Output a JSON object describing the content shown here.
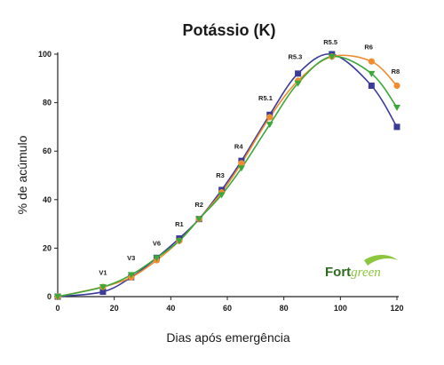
{
  "chart_data": {
    "type": "line",
    "title": "Potássio (K)",
    "xlabel": "Dias após emergência",
    "ylabel": "% de acúmulo",
    "xlim": [
      0,
      120
    ],
    "ylim": [
      0,
      100
    ],
    "xticks": [
      "0",
      "20",
      "40",
      "60",
      "80",
      "100",
      "120"
    ],
    "yticks": [
      "0",
      "20",
      "40",
      "60",
      "80",
      "100"
    ],
    "grid": false,
    "legend": "none",
    "series": [
      {
        "color": "#3b3b9a",
        "marker": "square",
        "x": [
          0,
          16,
          26,
          35,
          43,
          50,
          58,
          65,
          75,
          85,
          97,
          111,
          120
        ],
        "y": [
          0,
          2,
          8,
          16,
          24,
          32,
          44,
          56,
          75,
          92,
          100,
          87,
          70
        ]
      },
      {
        "color": "#f08c2e",
        "marker": "circle",
        "x": [
          0,
          16,
          26,
          35,
          43,
          50,
          58,
          65,
          75,
          85,
          97,
          111,
          120
        ],
        "y": [
          0,
          4,
          8,
          15,
          23,
          32,
          43,
          55,
          74,
          89,
          99,
          97,
          87
        ]
      },
      {
        "color": "#3aa93a",
        "marker": "triangle-down",
        "x": [
          0,
          16,
          26,
          35,
          43,
          50,
          58,
          65,
          75,
          85,
          97,
          111,
          120
        ],
        "y": [
          0,
          4,
          9,
          16,
          23,
          32,
          42,
          53,
          71,
          88,
          99,
          92,
          78
        ]
      }
    ],
    "annotations": [
      {
        "text": "V1",
        "x": 16,
        "y": 9
      },
      {
        "text": "V3",
        "x": 26,
        "y": 15
      },
      {
        "text": "V6",
        "x": 35,
        "y": 21
      },
      {
        "text": "R1",
        "x": 43,
        "y": 29
      },
      {
        "text": "R2",
        "x": 50,
        "y": 37
      },
      {
        "text": "R3",
        "x": 57.5,
        "y": 49
      },
      {
        "text": "R4",
        "x": 64,
        "y": 61
      },
      {
        "text": "R5.1",
        "x": 73.5,
        "y": 81
      },
      {
        "text": "R5.3",
        "x": 84,
        "y": 98
      },
      {
        "text": "R5.5",
        "x": 96.5,
        "y": 104
      },
      {
        "text": "R6",
        "x": 110,
        "y": 102
      },
      {
        "text": "R8",
        "x": 119.5,
        "y": 92
      }
    ],
    "logo": {
      "part1": "Fort",
      "part2": "green",
      "colors": [
        "#2f6b23",
        "#8cc63f"
      ]
    }
  }
}
